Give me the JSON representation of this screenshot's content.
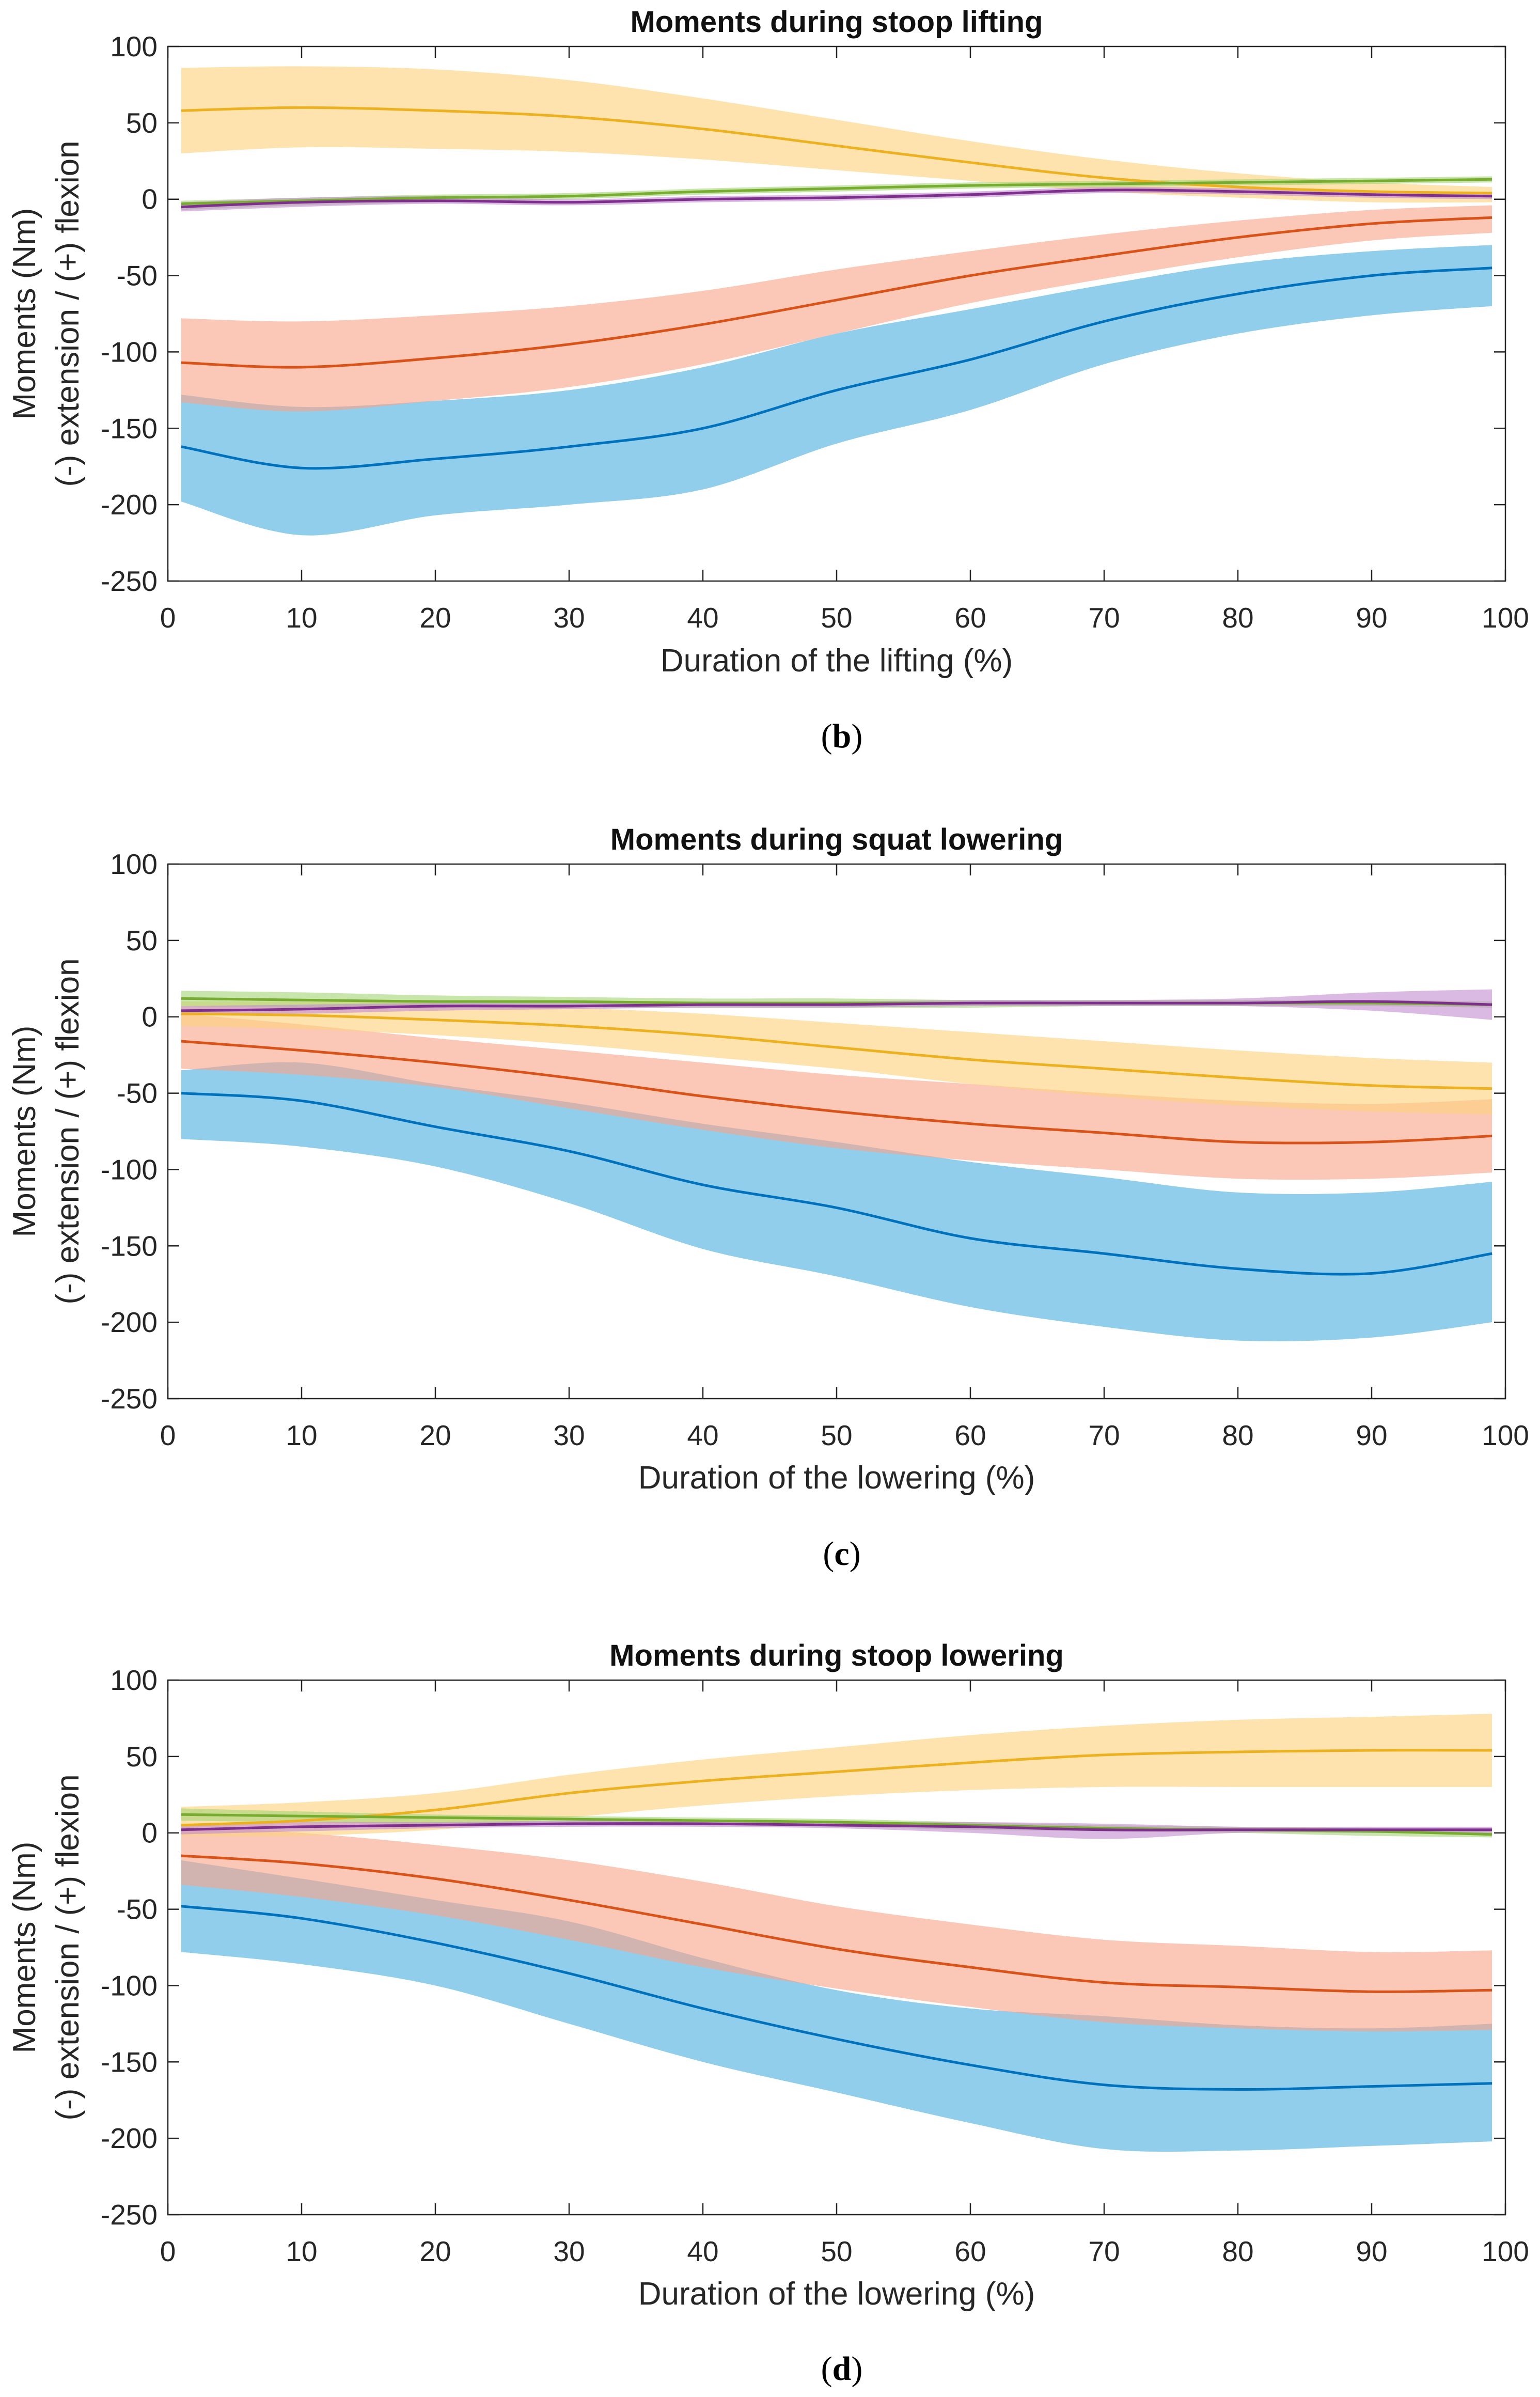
{
  "chart_data": [
    {
      "type": "line",
      "title": "Moments during stoop lifting",
      "xlabel": "Duration of the lifting (%)",
      "ylabel": [
        "Moments (Nm)",
        "(-) extension / (+) flexion"
      ],
      "caption": "b",
      "xlim": [
        0,
        100
      ],
      "ylim": [
        -250,
        100
      ],
      "xticks": [
        0,
        10,
        20,
        30,
        40,
        50,
        60,
        70,
        80,
        90,
        100
      ],
      "yticks": [
        100,
        50,
        0,
        -50,
        -100,
        -150,
        -200,
        -250
      ],
      "x": [
        1,
        10,
        20,
        30,
        40,
        50,
        60,
        70,
        80,
        90,
        99
      ],
      "series": [
        {
          "name": "blue",
          "color": "#0072BD",
          "band_color": "#4DB0E0",
          "mean": [
            -162,
            -176,
            -170,
            -162,
            -150,
            -125,
            -105,
            -80,
            -62,
            -50,
            -45
          ],
          "upper": [
            -128,
            -136,
            -132,
            -125,
            -110,
            -88,
            -72,
            -56,
            -42,
            -34,
            -30
          ],
          "lower": [
            -198,
            -220,
            -207,
            -200,
            -190,
            -160,
            -138,
            -108,
            -88,
            -76,
            -70
          ]
        },
        {
          "name": "orange",
          "color": "#D95319",
          "band_color": "#F9A58A",
          "mean": [
            -107,
            -110,
            -104,
            -95,
            -82,
            -66,
            -50,
            -37,
            -25,
            -16,
            -12
          ],
          "upper": [
            -78,
            -80,
            -76,
            -70,
            -60,
            -46,
            -34,
            -23,
            -14,
            -7,
            -4
          ],
          "lower": [
            -133,
            -139,
            -132,
            -123,
            -108,
            -88,
            -68,
            -52,
            -38,
            -27,
            -22
          ]
        },
        {
          "name": "yellow",
          "color": "#EDB120",
          "band_color": "#FDD27E",
          "mean": [
            58,
            60,
            58,
            54,
            46,
            35,
            24,
            14,
            8,
            5,
            4
          ],
          "upper": [
            86,
            87,
            85,
            78,
            66,
            52,
            38,
            26,
            17,
            11,
            8
          ],
          "lower": [
            30,
            34,
            33,
            31,
            26,
            19,
            12,
            5,
            1,
            -2,
            -2
          ]
        },
        {
          "name": "green",
          "color": "#77AC30",
          "band_color": "#A7D678",
          "mean": [
            -3,
            -1,
            1,
            2,
            5,
            7,
            9,
            10,
            11,
            12,
            13
          ],
          "upper": [
            -1,
            1,
            3,
            4,
            7,
            9,
            11,
            12,
            13,
            14,
            15
          ],
          "lower": [
            -7,
            -4,
            -2,
            0,
            3,
            5,
            7,
            8,
            9,
            10,
            11
          ]
        },
        {
          "name": "purple",
          "color": "#7E2F8E",
          "band_color": "#C48ED0",
          "mean": [
            -5,
            -2,
            -1,
            -2,
            0,
            1,
            3,
            6,
            5,
            3,
            2
          ],
          "upper": [
            -2,
            1,
            2,
            0,
            2,
            3,
            5,
            8,
            7,
            5,
            4
          ],
          "lower": [
            -8,
            -5,
            -3,
            -4,
            -2,
            -1,
            1,
            4,
            3,
            1,
            0
          ]
        }
      ]
    },
    {
      "type": "line",
      "title": "Moments during squat lowering",
      "xlabel": "Duration of the lowering (%)",
      "ylabel": [
        "Moments (Nm)",
        "(-) extension / (+) flexion"
      ],
      "caption": "c",
      "xlim": [
        0,
        100
      ],
      "ylim": [
        -250,
        100
      ],
      "xticks": [
        0,
        10,
        20,
        30,
        40,
        50,
        60,
        70,
        80,
        90,
        100
      ],
      "yticks": [
        100,
        50,
        0,
        -50,
        -100,
        -150,
        -200,
        -250
      ],
      "x": [
        1,
        10,
        20,
        30,
        40,
        50,
        60,
        70,
        80,
        90,
        99
      ],
      "series": [
        {
          "name": "blue",
          "color": "#0072BD",
          "band_color": "#4DB0E0",
          "mean": [
            -50,
            -55,
            -72,
            -88,
            -110,
            -125,
            -145,
            -155,
            -165,
            -168,
            -155
          ],
          "upper": [
            -35,
            -30,
            -44,
            -56,
            -70,
            -82,
            -95,
            -105,
            -115,
            -115,
            -108
          ],
          "lower": [
            -80,
            -85,
            -98,
            -122,
            -152,
            -170,
            -190,
            -203,
            -212,
            -210,
            -200
          ]
        },
        {
          "name": "orange",
          "color": "#D95319",
          "band_color": "#F9A58A",
          "mean": [
            -16,
            -22,
            -30,
            -40,
            -52,
            -62,
            -70,
            -76,
            -82,
            -82,
            -78
          ],
          "upper": [
            2,
            -5,
            -14,
            -22,
            -30,
            -38,
            -44,
            -50,
            -55,
            -57,
            -54
          ],
          "lower": [
            -34,
            -38,
            -46,
            -60,
            -74,
            -86,
            -94,
            -100,
            -106,
            -106,
            -102
          ]
        },
        {
          "name": "yellow",
          "color": "#EDB120",
          "band_color": "#FDD27E",
          "mean": [
            2,
            1,
            -2,
            -6,
            -12,
            -20,
            -28,
            -34,
            -40,
            -45,
            -47
          ],
          "upper": [
            10,
            10,
            9,
            6,
            2,
            -4,
            -10,
            -16,
            -22,
            -27,
            -30
          ],
          "lower": [
            -6,
            -8,
            -12,
            -18,
            -26,
            -34,
            -44,
            -52,
            -58,
            -62,
            -64
          ]
        },
        {
          "name": "green",
          "color": "#77AC30",
          "band_color": "#A7D678",
          "mean": [
            12,
            11,
            10,
            10,
            9,
            9,
            9,
            9,
            9,
            9,
            8
          ],
          "upper": [
            17,
            16,
            14,
            13,
            12,
            12,
            11,
            11,
            11,
            11,
            10
          ],
          "lower": [
            7,
            6,
            6,
            6,
            6,
            6,
            6,
            7,
            7,
            7,
            6
          ]
        },
        {
          "name": "purple",
          "color": "#7E2F8E",
          "band_color": "#C48ED0",
          "mean": [
            4,
            5,
            7,
            7,
            8,
            8,
            9,
            9,
            9,
            10,
            8
          ],
          "upper": [
            7,
            8,
            9,
            9,
            10,
            10,
            11,
            11,
            12,
            16,
            18
          ],
          "lower": [
            1,
            2,
            4,
            5,
            6,
            6,
            7,
            7,
            7,
            4,
            -2
          ]
        }
      ]
    },
    {
      "type": "line",
      "title": "Moments during stoop lowering",
      "xlabel": "Duration of the lowering (%)",
      "ylabel": [
        "Moments (Nm)",
        "(-) extension / (+) flexion"
      ],
      "caption": "d",
      "xlim": [
        0,
        100
      ],
      "ylim": [
        -250,
        100
      ],
      "xticks": [
        0,
        10,
        20,
        30,
        40,
        50,
        60,
        70,
        80,
        90,
        100
      ],
      "yticks": [
        100,
        50,
        0,
        -50,
        -100,
        -150,
        -200,
        -250
      ],
      "x": [
        1,
        10,
        20,
        30,
        40,
        50,
        60,
        70,
        80,
        90,
        99
      ],
      "series": [
        {
          "name": "blue",
          "color": "#0072BD",
          "band_color": "#4DB0E0",
          "mean": [
            -48,
            -56,
            -72,
            -92,
            -115,
            -135,
            -152,
            -165,
            -168,
            -166,
            -164
          ],
          "upper": [
            -18,
            -30,
            -44,
            -58,
            -82,
            -103,
            -115,
            -120,
            -126,
            -128,
            -125
          ],
          "lower": [
            -78,
            -86,
            -100,
            -125,
            -150,
            -170,
            -190,
            -207,
            -208,
            -205,
            -202
          ]
        },
        {
          "name": "orange",
          "color": "#D95319",
          "band_color": "#F9A58A",
          "mean": [
            -15,
            -20,
            -30,
            -44,
            -60,
            -76,
            -88,
            -98,
            -101,
            -104,
            -103
          ],
          "upper": [
            4,
            0,
            -8,
            -18,
            -32,
            -48,
            -60,
            -70,
            -74,
            -78,
            -77
          ],
          "lower": [
            -34,
            -42,
            -54,
            -70,
            -88,
            -102,
            -114,
            -124,
            -128,
            -130,
            -129
          ]
        },
        {
          "name": "yellow",
          "color": "#EDB120",
          "band_color": "#FDD27E",
          "mean": [
            5,
            8,
            15,
            26,
            34,
            40,
            46,
            51,
            53,
            54,
            54
          ],
          "upper": [
            17,
            20,
            26,
            38,
            48,
            56,
            64,
            70,
            74,
            76,
            78
          ],
          "lower": [
            -2,
            -2,
            2,
            10,
            18,
            24,
            28,
            30,
            30,
            30,
            30
          ]
        },
        {
          "name": "green",
          "color": "#77AC30",
          "band_color": "#A7D678",
          "mean": [
            12,
            11,
            10,
            9,
            8,
            7,
            5,
            3,
            2,
            1,
            -1
          ],
          "upper": [
            16,
            14,
            12,
            11,
            10,
            9,
            7,
            5,
            4,
            3,
            1
          ],
          "lower": [
            8,
            7,
            6,
            6,
            5,
            4,
            2,
            1,
            0,
            -2,
            -3
          ]
        },
        {
          "name": "purple",
          "color": "#7E2F8E",
          "band_color": "#C48ED0",
          "mean": [
            2,
            4,
            5,
            6,
            6,
            5,
            4,
            2,
            2,
            2,
            2
          ],
          "upper": [
            5,
            7,
            7,
            8,
            8,
            7,
            7,
            6,
            4,
            4,
            4
          ],
          "lower": [
            -1,
            1,
            3,
            4,
            4,
            3,
            0,
            -4,
            0,
            0,
            0
          ]
        }
      ]
    }
  ]
}
